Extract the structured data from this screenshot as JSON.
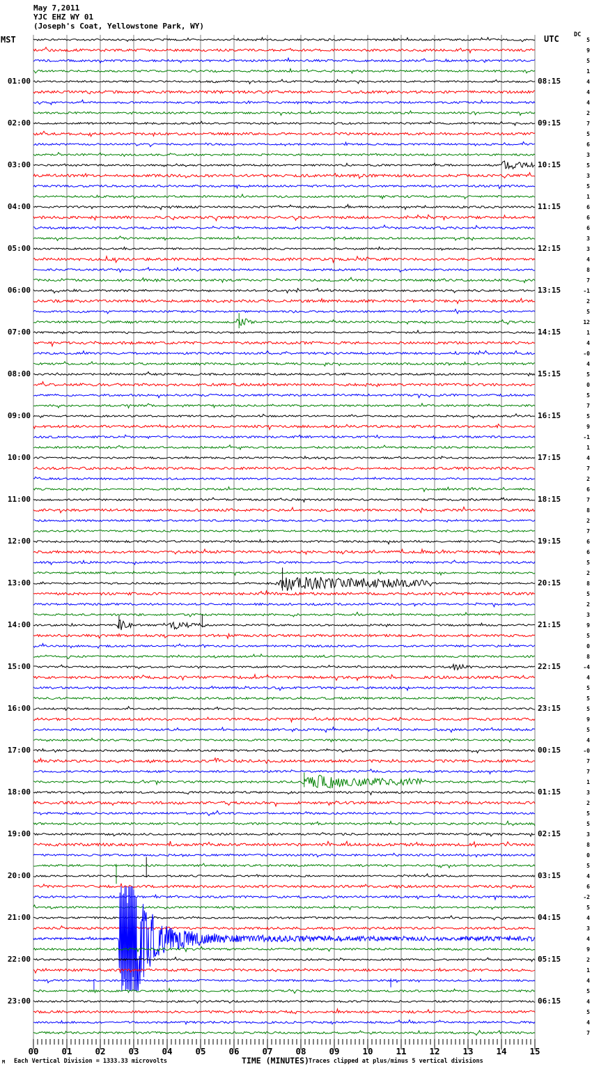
{
  "header": {
    "date": "May 7,2011",
    "station": "YJC EHZ WY 01",
    "location": "(Joseph's Coat, Yellowstone Park, WY)"
  },
  "axes": {
    "left_label": "MST",
    "right_label": "UTC",
    "dc_label": "DC",
    "x_title": "TIME (MINUTES)",
    "x_ticks": [
      "00",
      "01",
      "02",
      "03",
      "04",
      "05",
      "06",
      "07",
      "08",
      "09",
      "10",
      "11",
      "12",
      "13",
      "14",
      "15"
    ]
  },
  "footer": {
    "scale_note": "Each Vertical Division = 1333.33 microvolts",
    "clip_note": "Traces clipped at plus/minus 5 vertical divisions",
    "watermark": "M"
  },
  "left_times": [
    "01:00",
    "02:00",
    "03:00",
    "04:00",
    "05:00",
    "06:00",
    "07:00",
    "08:00",
    "09:00",
    "10:00",
    "11:00",
    "12:00",
    "13:00",
    "14:00",
    "15:00",
    "16:00",
    "17:00",
    "18:00",
    "19:00",
    "20:00",
    "21:00",
    "22:00",
    "23:00"
  ],
  "right_times": [
    "08:15",
    "09:15",
    "10:15",
    "11:15",
    "12:15",
    "13:15",
    "14:15",
    "15:15",
    "16:15",
    "17:15",
    "18:15",
    "19:15",
    "20:15",
    "21:15",
    "22:15",
    "23:15",
    "00:15",
    "01:15",
    "02:15",
    "03:15",
    "04:15",
    "05:15",
    "06:15"
  ],
  "dc_values": [
    "5",
    "9",
    "5",
    "1",
    "4",
    "4",
    "4",
    "2",
    "7",
    "5",
    "6",
    "3",
    "5",
    "3",
    "5",
    "1",
    "6",
    "6",
    "6",
    "3",
    "3",
    "4",
    "8",
    "7",
    "-1",
    "2",
    "5",
    "12",
    "1",
    "4",
    "-0",
    "4",
    "5",
    "0",
    "5",
    "7",
    "5",
    "9",
    "-1",
    "1",
    "4",
    "7",
    "2",
    "6",
    "7",
    "8",
    "2",
    "7",
    "6",
    "6",
    "5",
    "2",
    "8",
    "5",
    "2",
    "3",
    "9",
    "5",
    "0",
    "8",
    "-4",
    "4",
    "5",
    "5",
    "5",
    "9",
    "5",
    "4",
    "-0",
    "7",
    "7",
    "1",
    "3",
    "2",
    "5",
    "5",
    "3",
    "8",
    "0",
    "5",
    "4",
    "6",
    "-2",
    "5",
    "4",
    "3",
    "4",
    "9",
    "2",
    "1",
    "4",
    "5",
    "4",
    "5",
    "4",
    "7"
  ],
  "colors": {
    "trace_cycle": [
      "#000000",
      "#ff0000",
      "#0000ff",
      "#008000"
    ],
    "grid": "#808080",
    "text": "#000000"
  },
  "chart_data": {
    "type": "line",
    "title": "May 7,2011 YJC EHZ WY 01 (Joseph's Coat, Yellowstone Park, WY)",
    "xlabel": "TIME (MINUTES)",
    "x_range": [
      0,
      15
    ],
    "rows": 96,
    "minutes_per_row": 15,
    "start_time_mst": "00:00",
    "row_color_cycle": [
      "black",
      "red",
      "blue",
      "green"
    ],
    "division_microvolts": 1333.33,
    "clip_divisions": 5,
    "grid": "vertical lines every minute",
    "events": [
      {
        "row": 12,
        "mst": "03:00",
        "shape": "burst",
        "start_min": 14.0,
        "end_min": 14.95,
        "peak_div": 0.55
      },
      {
        "row": 27,
        "mst": "06:45",
        "shape": "burst",
        "start_min": 6.05,
        "end_min": 6.6,
        "peak_div": 0.55,
        "spikes": [
          {
            "at_min": 6.15,
            "up_div": 0.85,
            "down_div": 0.6
          }
        ]
      },
      {
        "row": 52,
        "mst": "13:00",
        "shape": "burst",
        "start_min": 7.2,
        "end_min": 11.9,
        "peak_div": 0.95,
        "spikes": [
          {
            "at_min": 7.45,
            "up_div": 1.5,
            "down_div": 0.7
          }
        ]
      },
      {
        "row": 56,
        "mst": "14:00",
        "shape": "burst",
        "start_min": 2.5,
        "end_min": 2.95,
        "peak_div": 0.7,
        "spikes": [
          {
            "at_min": 2.56,
            "up_div": 0.9,
            "down_div": 0.35
          }
        ]
      },
      {
        "row": 56,
        "mst": "14:00",
        "shape": "burst",
        "start_min": 4.05,
        "end_min": 5.2,
        "peak_div": 0.42,
        "spikes": [
          {
            "at_min": 5.05,
            "up_div": 1.0,
            "down_div": 0.2
          }
        ]
      },
      {
        "row": 60,
        "mst": "15:00",
        "shape": "burst",
        "start_min": 12.5,
        "end_min": 13.15,
        "peak_div": 0.5
      },
      {
        "row": 71,
        "mst": "17:45",
        "shape": "burst",
        "start_min": 8.0,
        "end_min": 11.8,
        "peak_div": 0.8,
        "spikes": [
          {
            "at_min": 8.1,
            "up_div": 0.9,
            "down_div": 0.5
          }
        ]
      },
      {
        "row": 79,
        "mst": "19:45",
        "shape": "spike",
        "at_min": 2.48,
        "up_div": 0.15,
        "down_div": 1.75
      },
      {
        "row": 80,
        "mst": "20:00",
        "shape": "spike",
        "at_min": 3.38,
        "up_div": 1.8,
        "down_div": 0.15
      },
      {
        "row": 86,
        "mst": "21:30",
        "shape": "major",
        "start_min": 2.54,
        "peak_div": 6,
        "clip_div": 5
      },
      {
        "row": 90,
        "mst": "22:30",
        "shape": "spike",
        "at_min": 1.81,
        "up_div": 0.1,
        "down_div": 1.0
      },
      {
        "row": 90,
        "mst": "22:30",
        "shape": "spike",
        "at_min": 10.69,
        "up_div": 0.2,
        "down_div": 0.65
      }
    ]
  }
}
